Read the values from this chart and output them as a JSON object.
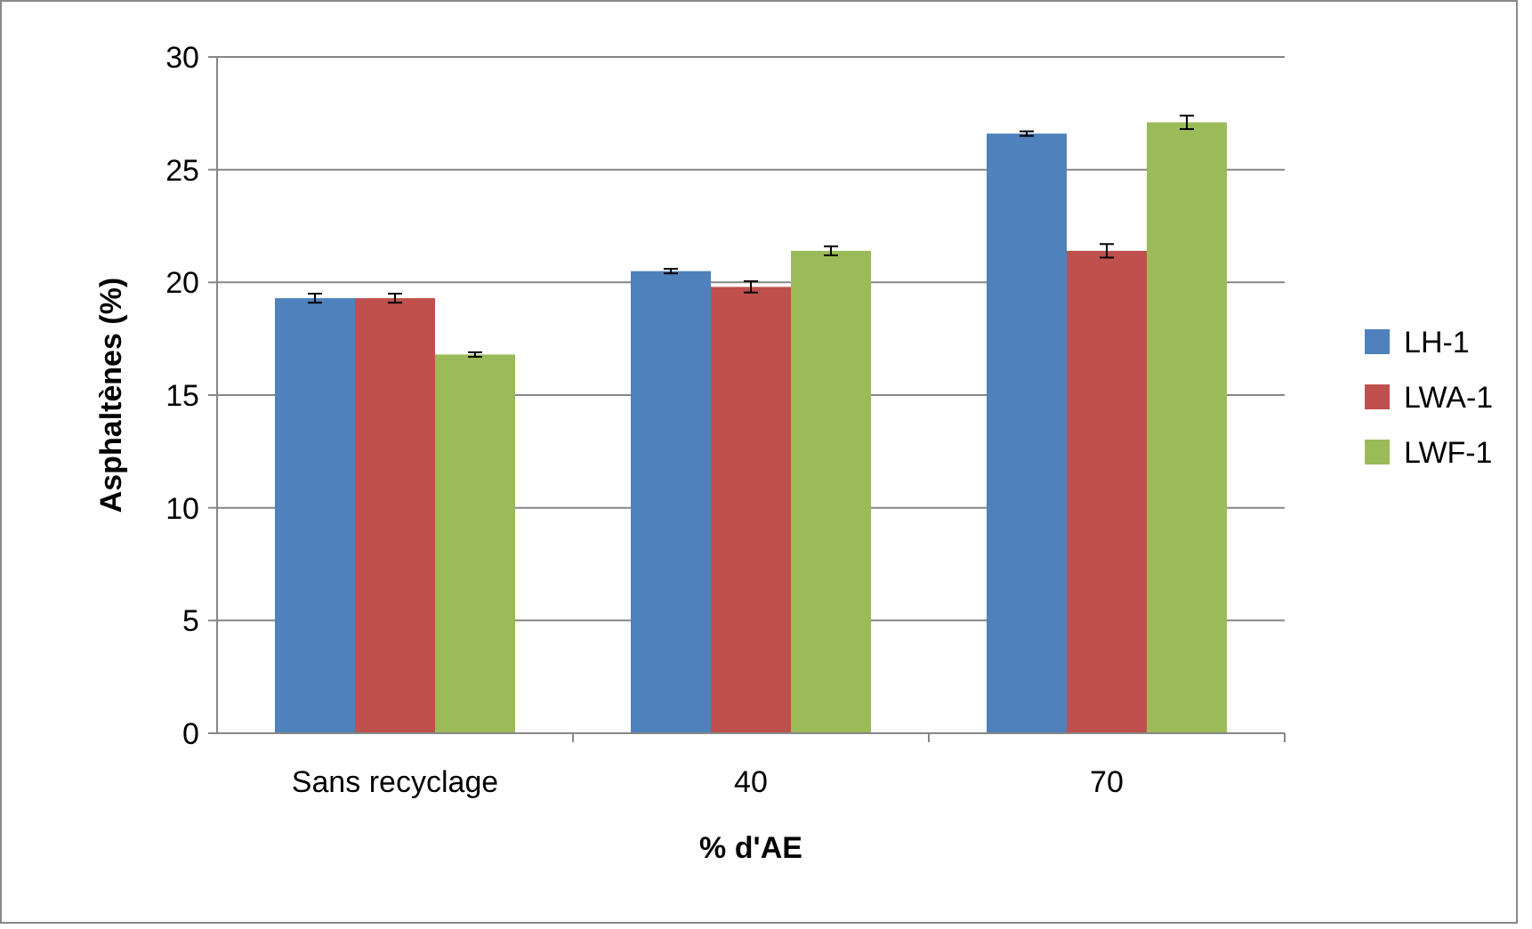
{
  "chart_data": {
    "type": "bar",
    "xlabel": "% d'AE",
    "ylabel": "Asphaltènes (%)",
    "categories": [
      "Sans recyclage",
      "40",
      "70"
    ],
    "series": [
      {
        "name": "LH-1",
        "color": "#4f81bd",
        "values": [
          19.3,
          20.5,
          26.6
        ],
        "errors": [
          0.2,
          0.1,
          0.1
        ]
      },
      {
        "name": "LWA-1",
        "color": "#c0504d",
        "values": [
          19.3,
          19.8,
          21.4
        ],
        "errors": [
          0.2,
          0.25,
          0.3
        ]
      },
      {
        "name": "LWF-1",
        "color": "#9bbb59",
        "values": [
          16.8,
          21.4,
          27.1
        ],
        "errors": [
          0.1,
          0.2,
          0.3
        ]
      }
    ],
    "ylim": [
      0,
      30
    ],
    "yticks": [
      0,
      5,
      10,
      15,
      20,
      25,
      30
    ],
    "grid": "y",
    "legend": "right"
  }
}
